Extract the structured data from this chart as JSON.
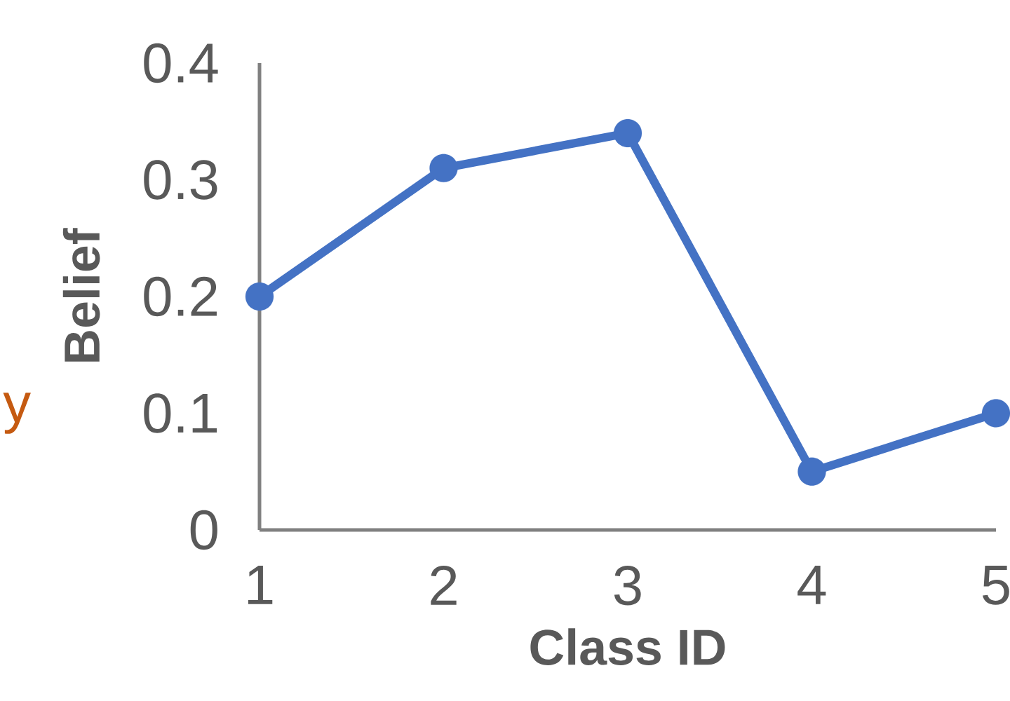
{
  "chart_data": {
    "type": "line",
    "xlabel": "Class ID",
    "ylabel": "Belief",
    "x": [
      1,
      2,
      3,
      4,
      5
    ],
    "values": [
      0.2,
      0.31,
      0.34,
      0.05,
      0.1
    ],
    "color": "#4472c4",
    "marker": "circle",
    "xlim": [
      1,
      5
    ],
    "xticks": [
      1,
      2,
      3,
      4,
      5
    ],
    "ylim": [
      0,
      0.4
    ],
    "yticks": [
      0,
      0.1,
      0.2,
      0.3,
      0.4
    ],
    "grid": false,
    "annotations": [
      "y"
    ]
  }
}
